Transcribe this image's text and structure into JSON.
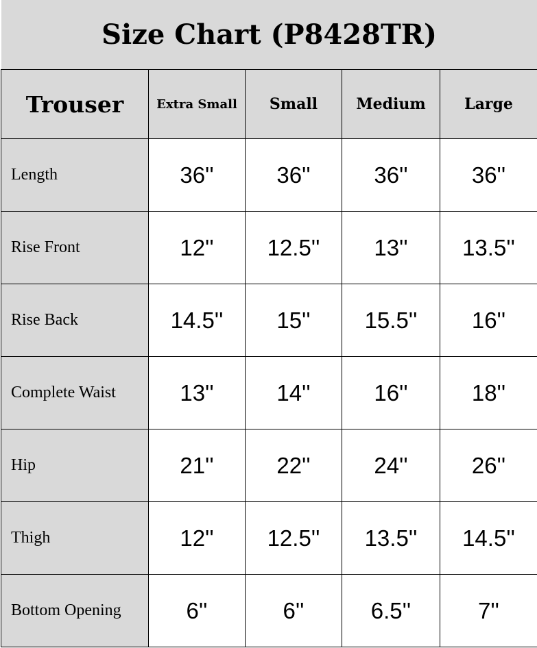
{
  "title": "Size Chart (P8428TR)",
  "header": {
    "category": "Trouser",
    "sizes": [
      "Extra Small",
      "Small",
      "Medium",
      "Large"
    ]
  },
  "rows": [
    {
      "label": "Length",
      "values": [
        "36''",
        "36''",
        "36''",
        "36''"
      ]
    },
    {
      "label": "Rise Front",
      "values": [
        "12''",
        "12.5''",
        "13''",
        "13.5''"
      ]
    },
    {
      "label": "Rise Back",
      "values": [
        "14.5''",
        "15''",
        "15.5''",
        "16''"
      ]
    },
    {
      "label": "Complete Waist",
      "values": [
        "13''",
        "14''",
        "16''",
        "18''"
      ]
    },
    {
      "label": "Hip",
      "values": [
        "21''",
        "22''",
        "24''",
        "26''"
      ]
    },
    {
      "label": "Thigh",
      "values": [
        "12''",
        "12.5''",
        "13.5''",
        "14.5''"
      ]
    },
    {
      "label": "Bottom Opening",
      "values": [
        "6''",
        "6''",
        "6.5''",
        "7''"
      ]
    }
  ],
  "colors": {
    "header_bg": "#d9d9d9",
    "cell_bg": "#ffffff",
    "border": "#000000"
  }
}
